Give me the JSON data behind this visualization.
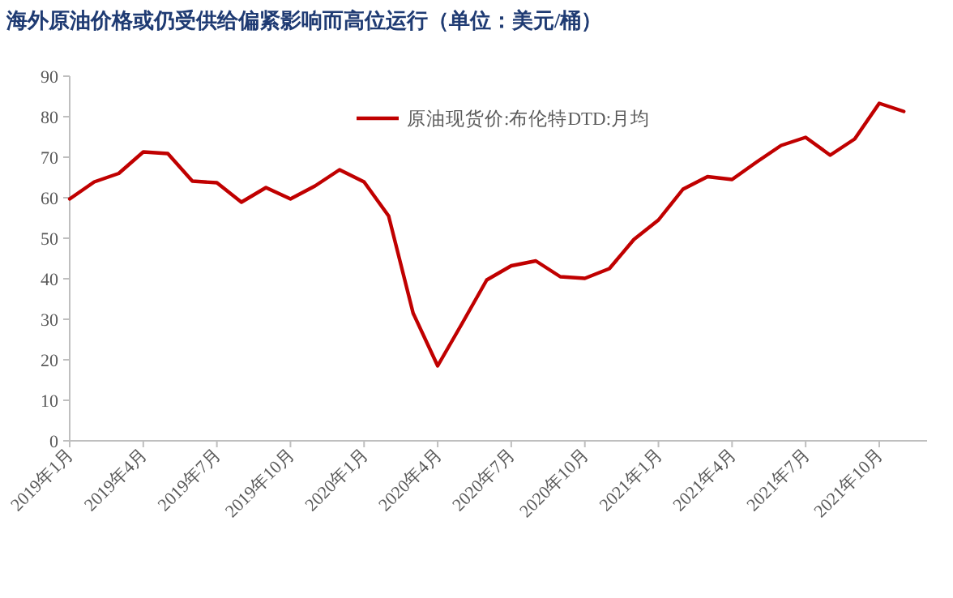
{
  "chart_data": {
    "type": "line",
    "title": "海外原油价格或仍受供给偏紧影响而高位运行（单位：美元/桶）",
    "categories": [
      "2019年1月",
      null,
      null,
      "2019年4月",
      null,
      null,
      "2019年7月",
      null,
      null,
      "2019年10月",
      null,
      null,
      "2020年1月",
      null,
      null,
      "2020年4月",
      null,
      null,
      "2020年7月",
      null,
      null,
      "2020年10月",
      null,
      null,
      "2021年1月",
      null,
      null,
      "2021年4月",
      null,
      null,
      "2021年7月",
      null,
      null,
      "2021年10月",
      null
    ],
    "series": [
      {
        "name": "原油现货价:布伦特DTD:月均",
        "color": "#c00000",
        "values": [
          59.7,
          63.9,
          66.0,
          71.3,
          70.9,
          64.1,
          63.7,
          58.9,
          62.5,
          59.7,
          62.9,
          66.9,
          63.9,
          55.5,
          31.5,
          18.5,
          29,
          39.7,
          43.2,
          44.4,
          40.5,
          40.1,
          42.5,
          49.7,
          54.5,
          62.1,
          65.2,
          64.5,
          68.8,
          72.9,
          74.9,
          70.5,
          74.5,
          83.3,
          81.3
        ]
      }
    ],
    "ylim": [
      0,
      90
    ],
    "yticks": [
      0,
      10,
      20,
      30,
      40,
      50,
      60,
      70,
      80,
      90
    ],
    "grid": false,
    "legend": "top",
    "marker": "none",
    "line_style": "solid"
  }
}
